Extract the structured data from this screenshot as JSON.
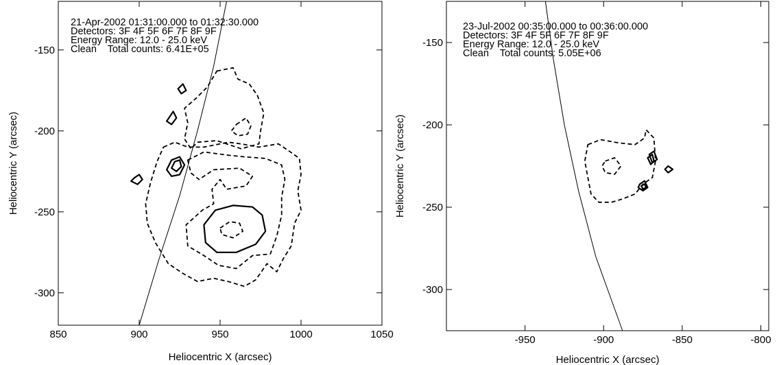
{
  "chart_data": [
    {
      "type": "contour",
      "annotations": [
        "21-Apr-2002 01:31:00.000 to 01:32:30.000",
        "Detectors: 3F 4F 5F 6F 7F 8F 9F",
        "Energy Range: 12.0 - 25.0 keV",
        "Clean    Total counts: 6.41E+05"
      ],
      "xlabel": "Heliocentric X (arcsec)",
      "ylabel": "Heliocentric Y (arcsec)",
      "xlim": [
        850,
        1050
      ],
      "ylim": [
        -320,
        -120
      ],
      "xticks": [
        850,
        900,
        950,
        1000,
        1050
      ],
      "yticks": [
        -150,
        -200,
        -250,
        -300
      ],
      "limb": [
        [
          900,
          -320
        ],
        [
          912,
          -280
        ],
        [
          925,
          -240
        ],
        [
          936,
          -200
        ],
        [
          946,
          -160
        ],
        [
          954,
          -120
        ]
      ],
      "contours": [
        {
          "style": "dashed",
          "points": [
            [
              948,
              -163
            ],
            [
              958,
              -161
            ],
            [
              961,
              -168
            ],
            [
              968,
              -171
            ],
            [
              973,
              -178
            ],
            [
              977,
              -189
            ],
            [
              975,
              -200
            ],
            [
              974,
              -208
            ],
            [
              963,
              -211
            ],
            [
              948,
              -206
            ],
            [
              936,
              -207
            ],
            [
              932,
              -211
            ],
            [
              928,
              -205
            ],
            [
              930,
              -195
            ],
            [
              928,
              -186
            ],
            [
              935,
              -180
            ],
            [
              942,
              -173
            ]
          ]
        },
        {
          "style": "dashed",
          "points": [
            [
              915,
              -210
            ],
            [
              922,
              -207
            ],
            [
              930,
              -210
            ],
            [
              940,
              -210
            ],
            [
              955,
              -207
            ],
            [
              963,
              -208
            ],
            [
              974,
              -210
            ],
            [
              986,
              -208
            ],
            [
              992,
              -212
            ],
            [
              999,
              -217
            ],
            [
              1000,
              -227
            ],
            [
              998,
              -237
            ],
            [
              1000,
              -249
            ],
            [
              996,
              -257
            ],
            [
              994,
              -271
            ],
            [
              989,
              -279
            ],
            [
              985,
              -287
            ],
            [
              979,
              -282
            ],
            [
              972,
              -292
            ],
            [
              965,
              -296
            ],
            [
              955,
              -293
            ],
            [
              946,
              -291
            ],
            [
              936,
              -293
            ],
            [
              927,
              -288
            ],
            [
              918,
              -282
            ],
            [
              910,
              -269
            ],
            [
              905,
              -257
            ],
            [
              904,
              -245
            ],
            [
              907,
              -232
            ],
            [
              911,
              -219
            ]
          ]
        },
        {
          "style": "dashed",
          "points": [
            [
              930,
              -218
            ],
            [
              940,
              -213
            ],
            [
              955,
              -215
            ],
            [
              965,
              -216
            ],
            [
              978,
              -217
            ],
            [
              988,
              -221
            ],
            [
              990,
              -230
            ],
            [
              988,
              -241
            ],
            [
              988,
              -252
            ],
            [
              985,
              -265
            ],
            [
              981,
              -276
            ],
            [
              970,
              -277
            ],
            [
              960,
              -285
            ],
            [
              949,
              -283
            ],
            [
              940,
              -277
            ],
            [
              930,
              -271
            ],
            [
              929,
              -258
            ],
            [
              939,
              -249
            ],
            [
              946,
              -245
            ],
            [
              945,
              -236
            ],
            [
              950,
              -230
            ],
            [
              954,
              -236
            ],
            [
              966,
              -234
            ],
            [
              970,
              -228
            ],
            [
              962,
              -223
            ],
            [
              946,
              -224
            ],
            [
              937,
              -230
            ],
            [
              932,
              -226
            ]
          ]
        },
        {
          "style": "dashed",
          "points": [
            [
              960,
              -196
            ],
            [
              966,
              -192
            ],
            [
              969,
              -197
            ],
            [
              967,
              -202
            ],
            [
              961,
              -203
            ],
            [
              957,
              -200
            ]
          ]
        },
        {
          "style": "dashed",
          "points": [
            [
              950,
              -260
            ],
            [
              956,
              -256
            ],
            [
              962,
              -257
            ],
            [
              964,
              -262
            ],
            [
              958,
              -266
            ],
            [
              951,
              -264
            ]
          ]
        },
        {
          "style": "solid",
          "points": [
            [
              940,
              -258
            ],
            [
              947,
              -249
            ],
            [
              958,
              -246
            ],
            [
              970,
              -247
            ],
            [
              976,
              -252
            ],
            [
              978,
              -262
            ],
            [
              972,
              -270
            ],
            [
              960,
              -275
            ],
            [
              948,
              -275
            ],
            [
              941,
              -269
            ]
          ]
        },
        {
          "style": "solid",
          "points": [
            [
              920,
              -218
            ],
            [
              925,
              -216
            ],
            [
              928,
              -221
            ],
            [
              925,
              -227
            ],
            [
              920,
              -228
            ],
            [
              917,
              -224
            ]
          ]
        },
        {
          "style": "solid",
          "points": [
            [
              922,
              -219
            ],
            [
              925,
              -218
            ],
            [
              926,
              -222
            ],
            [
              923,
              -225
            ],
            [
              920,
              -223
            ]
          ]
        },
        {
          "style": "solid",
          "points": [
            [
              919,
              -191
            ],
            [
              921,
              -188
            ],
            [
              923,
              -192
            ],
            [
              920,
              -196
            ],
            [
              917,
              -194
            ]
          ]
        },
        {
          "style": "solid",
          "points": [
            [
              924,
              -174
            ],
            [
              927,
              -171
            ],
            [
              929,
              -175
            ],
            [
              926,
              -177
            ]
          ]
        },
        {
          "style": "solid",
          "points": [
            [
              897,
              -229
            ],
            [
              900,
              -227
            ],
            [
              902,
              -230
            ],
            [
              899,
              -233
            ],
            [
              895,
              -231
            ]
          ]
        }
      ]
    },
    {
      "type": "contour",
      "annotations": [
        "23-Jul-2002 00:35:00.000 to 00:36:00.000",
        "Detectors: 3F 4F 5F 6F 7F 8F 9F",
        "Energy Range: 12.0 - 25.0 keV",
        "Clean    Total counts: 5.05E+06"
      ],
      "xlabel": "Heliocentric X (arcsec)",
      "ylabel": "Heliocentric Y (arcsec)",
      "xlim": [
        -1000,
        -795
      ],
      "ylim": [
        -325,
        -125
      ],
      "xticks": [
        -950,
        -900,
        -850,
        -800
      ],
      "yticks": [
        -150,
        -200,
        -250,
        -300
      ],
      "limb": [
        [
          -937,
          -125
        ],
        [
          -932,
          -160
        ],
        [
          -925,
          -200
        ],
        [
          -916,
          -240
        ],
        [
          -905,
          -280
        ],
        [
          -888,
          -325
        ]
      ],
      "contours": [
        {
          "style": "dashed",
          "points": [
            [
              -910,
              -212
            ],
            [
              -902,
              -209
            ],
            [
              -890,
              -211
            ],
            [
              -880,
              -212
            ],
            [
              -874,
              -208
            ],
            [
              -873,
              -203
            ],
            [
              -868,
              -208
            ],
            [
              -867,
              -222
            ],
            [
              -869,
              -232
            ],
            [
              -875,
              -236
            ],
            [
              -880,
              -242
            ],
            [
              -888,
              -245
            ],
            [
              -895,
              -247
            ],
            [
              -903,
              -247
            ],
            [
              -908,
              -242
            ],
            [
              -910,
              -232
            ],
            [
              -912,
              -222
            ]
          ]
        },
        {
          "style": "dashed",
          "points": [
            [
              -899,
              -222
            ],
            [
              -893,
              -220
            ],
            [
              -889,
              -225
            ],
            [
              -893,
              -230
            ],
            [
              -899,
              -229
            ],
            [
              -901,
              -225
            ]
          ]
        },
        {
          "style": "solid",
          "points": [
            [
              -871,
              -218
            ],
            [
              -868,
              -216
            ],
            [
              -866,
              -221
            ],
            [
              -869,
              -223
            ]
          ]
        },
        {
          "style": "solid",
          "points": [
            [
              -872,
              -220
            ],
            [
              -869,
              -218
            ],
            [
              -868,
              -222
            ],
            [
              -870,
              -224
            ]
          ]
        },
        {
          "style": "solid",
          "points": [
            [
              -877,
              -236
            ],
            [
              -874,
              -234
            ],
            [
              -872,
              -238
            ],
            [
              -875,
              -240
            ],
            [
              -878,
              -238
            ]
          ]
        },
        {
          "style": "solid",
          "points": [
            [
              -876,
              -237
            ],
            [
              -874,
              -236
            ],
            [
              -873,
              -238
            ],
            [
              -875,
              -239
            ]
          ]
        },
        {
          "style": "solid",
          "points": [
            [
              -859,
              -225
            ],
            [
              -856,
              -227
            ],
            [
              -859,
              -229
            ],
            [
              -861,
              -227
            ]
          ]
        }
      ]
    }
  ]
}
